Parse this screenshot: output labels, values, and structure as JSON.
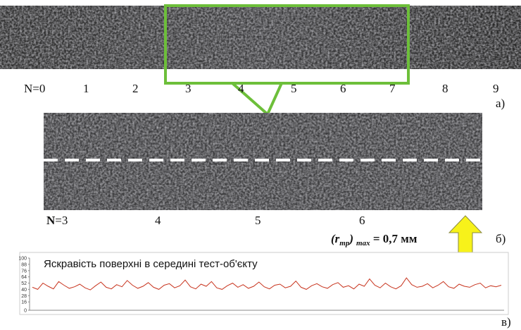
{
  "panel_a": {
    "labels": [
      "N=0",
      "1",
      "2",
      "3",
      "4",
      "5",
      "6",
      "7",
      "8",
      "9"
    ],
    "caption": "а)"
  },
  "panel_b": {
    "n_symbol": "N",
    "labels": [
      "=3",
      "4",
      "5",
      "6"
    ],
    "caption": "б)",
    "formula": {
      "open": "(r",
      "sub1": "mp",
      "close": ")",
      "sub2": "max",
      "value": " = 0,7 мм"
    }
  },
  "chart_data": {
    "type": "line",
    "title": "Яскравість поверхні в середині тест-об'єкту",
    "color": "#c8341e",
    "ylim": [
      0,
      100
    ],
    "yticks": [
      0,
      16,
      28,
      40,
      52,
      64,
      76,
      88,
      100
    ],
    "caption": "в)",
    "values": [
      44,
      40,
      52,
      46,
      41,
      55,
      48,
      42,
      45,
      50,
      43,
      39,
      47,
      54,
      44,
      41,
      49,
      45,
      57,
      48,
      42,
      46,
      53,
      44,
      40,
      48,
      51,
      43,
      47,
      58,
      45,
      41,
      50,
      46,
      55,
      43,
      40,
      47,
      52,
      44,
      49,
      42,
      46,
      54,
      45,
      41,
      48,
      50,
      43,
      46,
      56,
      44,
      40,
      47,
      51,
      45,
      42,
      49,
      53,
      44,
      47,
      41,
      50,
      46,
      60,
      48,
      43,
      52,
      45,
      41,
      47,
      62,
      49,
      44,
      46,
      51,
      43,
      48,
      55,
      45,
      42,
      50,
      46,
      44,
      49,
      52,
      43,
      47,
      45,
      48
    ]
  }
}
